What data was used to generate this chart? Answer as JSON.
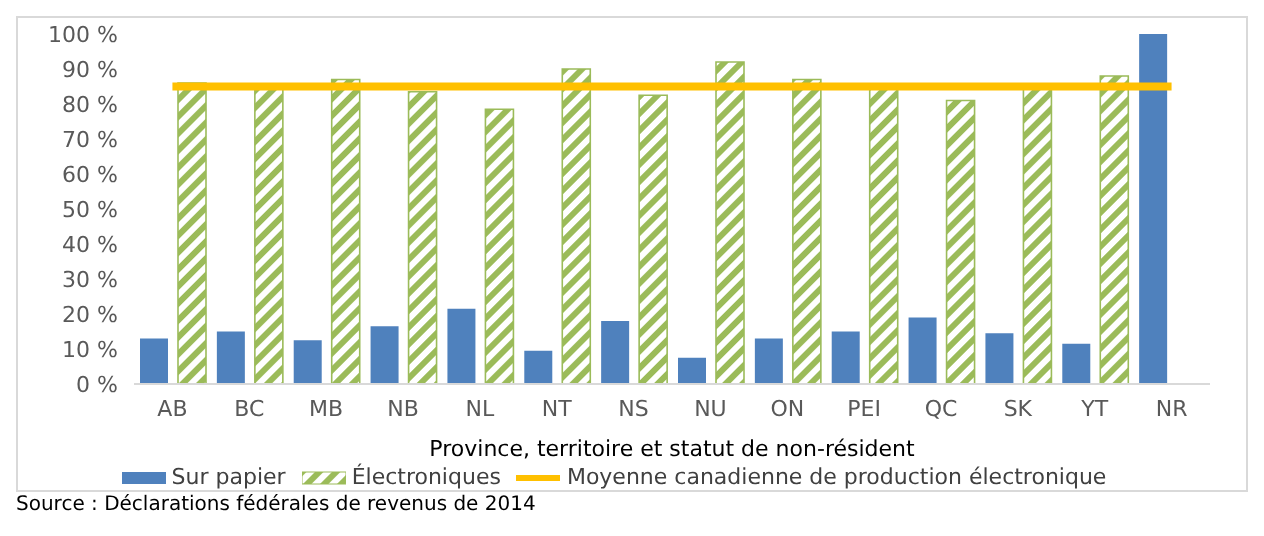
{
  "chart_data": {
    "type": "bar",
    "categories": [
      "AB",
      "BC",
      "MB",
      "NB",
      "NL",
      "NT",
      "NS",
      "NU",
      "ON",
      "PEI",
      "QC",
      "SK",
      "YT",
      "NR"
    ],
    "xlabel": "Province, territoire et statut de non-résident",
    "series": [
      {
        "name": "Sur papier",
        "color": "#4f81bd",
        "values": [
          13,
          15,
          12.5,
          16.5,
          21.5,
          9.5,
          18,
          7.5,
          13,
          15,
          19,
          14.5,
          11.5,
          100
        ]
      },
      {
        "name": "Électroniques",
        "color": "#9bbb59",
        "values": [
          86,
          85,
          87,
          83.5,
          78.5,
          90,
          82.5,
          92,
          87,
          85,
          81,
          85.5,
          88,
          null
        ]
      },
      {
        "name": "Moyenne canadienne de production électronique",
        "type": "line",
        "color": "#ffc000",
        "values": [
          85,
          85,
          85,
          85,
          85,
          85,
          85,
          85,
          85,
          85,
          85,
          85,
          85,
          85
        ]
      }
    ],
    "ylim": [
      0,
      100
    ],
    "yticks": [
      {
        "value": 0,
        "label": "0 %"
      },
      {
        "value": 10,
        "label": "10 %"
      },
      {
        "value": 20,
        "label": "20 %"
      },
      {
        "value": 30,
        "label": "30 %"
      },
      {
        "value": 40,
        "label": "40 %"
      },
      {
        "value": 50,
        "label": "50 %"
      },
      {
        "value": 60,
        "label": "60 %"
      },
      {
        "value": 70,
        "label": "70 %"
      },
      {
        "value": 80,
        "label": "80 %"
      },
      {
        "value": 90,
        "label": "90 %"
      },
      {
        "value": 100,
        "label": "100 %"
      }
    ],
    "grid": false,
    "legend": "bottom",
    "marker": "none",
    "annotations": [
      "Source : Déclarations fédérales de revenus de 2014"
    ]
  }
}
